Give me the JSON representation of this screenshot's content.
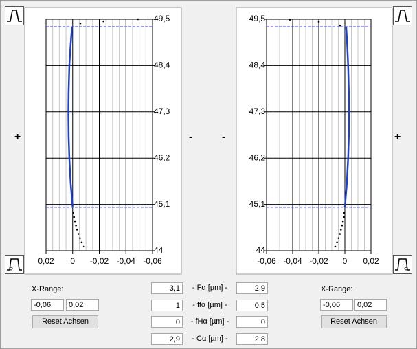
{
  "chart_data": [
    {
      "type": "line",
      "xlim": [
        0.02,
        -0.06
      ],
      "ylim": [
        44,
        49.5
      ],
      "yaxis_side": "right",
      "xticks": [
        {
          "value": 0.02,
          "label": "0,02"
        },
        0,
        {
          "value": -0.02,
          "label": "-0,02"
        },
        {
          "value": -0.04,
          "label": "-0,04"
        },
        {
          "value": -0.06,
          "label": "-0,06"
        }
      ],
      "xminorticks": [
        0.015,
        0.01,
        0.005,
        -0.005,
        -0.01,
        -0.015,
        -0.025,
        -0.03,
        -0.035,
        -0.045,
        -0.05,
        -0.055
      ],
      "yticks": [
        44,
        {
          "value": 45.1,
          "label": "45,1"
        },
        {
          "value": 46.2,
          "label": "46,2"
        },
        {
          "value": 47.3,
          "label": "47,3"
        },
        {
          "value": 48.4,
          "label": "48,4"
        },
        {
          "value": 49.5,
          "label": "49,5"
        }
      ],
      "limit_lines": {
        "color": "#3a3aff",
        "values": [
          45.03,
          49.32
        ]
      },
      "series": [
        {
          "color": "#1f3fd0",
          "mode": "line",
          "x": [
            0,
            0.0015,
            0.0025,
            0.003,
            0.0032,
            0.003,
            0.0025,
            0.0015,
            0.0005
          ],
          "values": [
            45.03,
            45.6,
            46.2,
            46.7,
            47.3,
            47.8,
            48.4,
            48.9,
            49.32
          ]
        },
        {
          "color": "#000000",
          "mode": "markers",
          "x": [
            -0.0005,
            -0.001,
            -0.0017,
            -0.0025,
            -0.0033,
            -0.0043,
            -0.0055,
            -0.0068,
            -0.0085,
            -0.0058,
            -0.0232,
            -0.049
          ],
          "values": [
            44.9,
            44.8,
            44.7,
            44.6,
            44.5,
            44.4,
            44.3,
            44.2,
            44.1,
            49.4,
            49.45,
            49.5
          ]
        }
      ]
    },
    {
      "type": "line",
      "xlim": [
        -0.06,
        0.02
      ],
      "ylim": [
        44,
        49.5
      ],
      "yaxis_side": "left",
      "xticks": [
        {
          "value": -0.06,
          "label": "-0,06"
        },
        {
          "value": -0.04,
          "label": "-0,04"
        },
        {
          "value": -0.02,
          "label": "-0,02"
        },
        0,
        {
          "value": 0.02,
          "label": "0,02"
        }
      ],
      "xminorticks": [
        -0.055,
        -0.05,
        -0.045,
        -0.035,
        -0.03,
        -0.025,
        -0.015,
        -0.01,
        -0.005,
        0.005,
        0.01,
        0.015
      ],
      "yticks": [
        44,
        {
          "value": 45.1,
          "label": "45,1"
        },
        {
          "value": 46.2,
          "label": "46,2"
        },
        {
          "value": 47.3,
          "label": "47,3"
        },
        {
          "value": 48.4,
          "label": "48,4"
        },
        {
          "value": 49.5,
          "label": "49,5"
        }
      ],
      "limit_lines": {
        "color": "#3a3aff",
        "values": [
          45.03,
          49.32
        ]
      },
      "series": [
        {
          "color": "#1f3fd0",
          "mode": "line",
          "x": [
            0,
            0.0015,
            0.0025,
            0.003,
            0.0032,
            0.003,
            0.0025,
            0.0018,
            0.001
          ],
          "values": [
            45.03,
            45.6,
            46.2,
            46.7,
            47.3,
            47.8,
            48.4,
            48.9,
            49.32
          ]
        },
        {
          "color": "#000000",
          "mode": "markers",
          "x": [
            -0.0004,
            -0.0009,
            -0.0015,
            -0.0022,
            -0.003,
            -0.0038,
            -0.0048,
            -0.006,
            -0.0074,
            -0.0421,
            -0.02,
            -0.0037
          ],
          "values": [
            44.9,
            44.8,
            44.7,
            44.6,
            44.5,
            44.4,
            44.3,
            44.2,
            44.1,
            49.49,
            49.44,
            49.35
          ]
        }
      ]
    }
  ],
  "left_panel": {
    "plus": "+",
    "minus": "-",
    "x_range_label": "X-Range:",
    "x_min": "-0,06",
    "x_max": "0,02",
    "reset_button": "Reset Achsen"
  },
  "right_panel": {
    "plus": "+",
    "minus": "-",
    "x_range_label": "X-Range:",
    "x_min": "-0,06",
    "x_max": "0,02",
    "reset_button": "Reset Achsen"
  },
  "metrics": {
    "labels": [
      "- Fα [µm] -",
      "- ffα [µm] -",
      "- fHα [µm] -",
      "- Cα [µm] -"
    ],
    "left": [
      "3,1",
      "1",
      "0",
      "2,9"
    ],
    "right": [
      "2,9",
      "0,5",
      "0",
      "2,8"
    ]
  }
}
